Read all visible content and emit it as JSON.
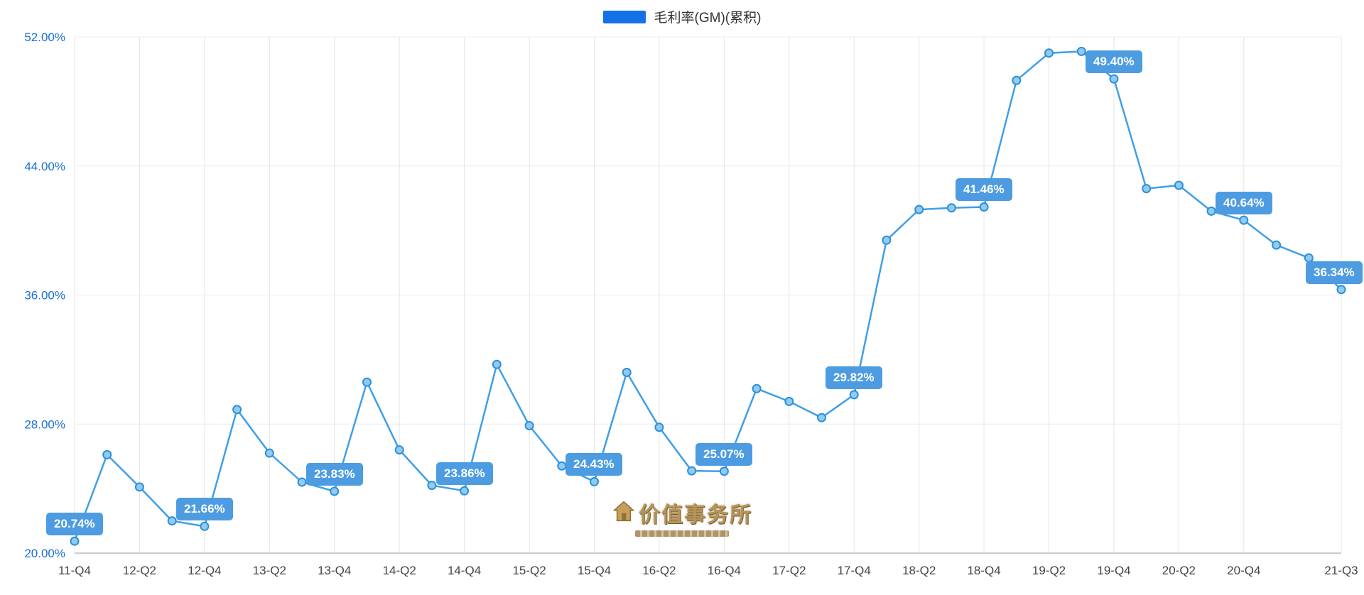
{
  "chart_data": {
    "type": "line",
    "title": "毛利率(GM)(累积)",
    "legend": "毛利率(GM)(累积)",
    "legend_position": "top-center",
    "xlabel": "",
    "ylabel": "",
    "grid": true,
    "ylim": [
      20,
      52
    ],
    "yticks": [
      {
        "value": 20,
        "label": "20.00%"
      },
      {
        "value": 28,
        "label": "28.00%"
      },
      {
        "value": 36,
        "label": "36.00%"
      },
      {
        "value": 44,
        "label": "44.00%"
      },
      {
        "value": 52,
        "label": "52.00%"
      }
    ],
    "categories": [
      "11-Q4",
      "12-Q1",
      "12-Q2",
      "12-Q3",
      "12-Q4",
      "13-Q1",
      "13-Q2",
      "13-Q3",
      "13-Q4",
      "14-Q1",
      "14-Q2",
      "14-Q3",
      "14-Q4",
      "15-Q1",
      "15-Q2",
      "15-Q3",
      "15-Q4",
      "16-Q1",
      "16-Q2",
      "16-Q3",
      "16-Q4",
      "17-Q1",
      "17-Q2",
      "17-Q3",
      "17-Q4",
      "18-Q1",
      "18-Q2",
      "18-Q3",
      "18-Q4",
      "19-Q1",
      "19-Q2",
      "19-Q3",
      "19-Q4",
      "20-Q1",
      "20-Q2",
      "20-Q3",
      "20-Q4",
      "21-Q1",
      "21-Q2",
      "21-Q3"
    ],
    "values": [
      20.74,
      26.1,
      24.1,
      22.0,
      21.66,
      28.9,
      26.2,
      24.4,
      23.83,
      30.6,
      26.4,
      24.2,
      23.86,
      31.7,
      27.9,
      25.4,
      24.43,
      31.2,
      27.8,
      25.1,
      25.07,
      30.2,
      29.4,
      28.4,
      29.82,
      39.4,
      41.3,
      41.4,
      41.46,
      49.3,
      51.0,
      51.1,
      49.4,
      42.6,
      42.8,
      41.2,
      40.64,
      39.1,
      38.3,
      36.34
    ],
    "x_tick_indices": [
      0,
      2,
      4,
      6,
      8,
      10,
      12,
      14,
      16,
      18,
      20,
      22,
      24,
      26,
      28,
      30,
      32,
      34,
      36,
      39
    ],
    "labeled_points": [
      {
        "index": 0,
        "label": "20.74%"
      },
      {
        "index": 4,
        "label": "21.66%"
      },
      {
        "index": 8,
        "label": "23.83%"
      },
      {
        "index": 12,
        "label": "23.86%"
      },
      {
        "index": 16,
        "label": "24.43%"
      },
      {
        "index": 20,
        "label": "25.07%"
      },
      {
        "index": 24,
        "label": "29.82%"
      },
      {
        "index": 28,
        "label": "41.46%"
      },
      {
        "index": 32,
        "label": "49.40%"
      },
      {
        "index": 36,
        "label": "40.64%"
      },
      {
        "index": 39,
        "label": "36.34%"
      }
    ]
  },
  "colors": {
    "line": "#3f9fe8",
    "marker_fill": "#8fcbf2",
    "marker_stroke": "#2e8fd6",
    "legend_swatch": "#1470e6",
    "tooltip_bg": "#4d9ce2",
    "y_label": "#1a6fd8",
    "x_label": "#444444",
    "axis_line": "#9a9a9a",
    "grid_vertical": "#e5e5e5",
    "grid_horizontal": "#ececec"
  },
  "watermark": {
    "text": "价值事务所"
  }
}
